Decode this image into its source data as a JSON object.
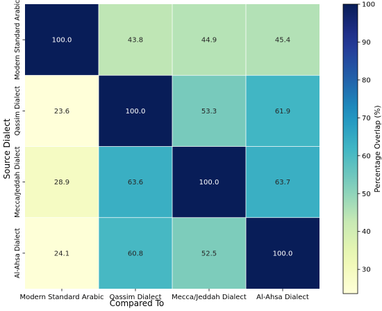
{
  "chart_data": {
    "type": "heatmap",
    "xlabel": "Compared To",
    "ylabel": "Source Dialect",
    "x_categories": [
      "Modern Standard Arabic",
      "Qassim Dialect",
      "Mecca/Jeddah Dialect",
      "Al-Ahsa Dialect"
    ],
    "y_categories": [
      "Modern Standard Arabic",
      "Qassim Dialect",
      "Mecca/Jeddah Dialect",
      "Al-Ahsa Dialect"
    ],
    "values": [
      [
        100.0,
        43.8,
        44.9,
        45.4
      ],
      [
        23.6,
        100.0,
        53.3,
        61.9
      ],
      [
        28.9,
        63.6,
        100.0,
        63.7
      ],
      [
        24.1,
        60.8,
        52.5,
        100.0
      ]
    ],
    "value_labels": [
      [
        "100.0",
        "43.8",
        "44.9",
        "45.4"
      ],
      [
        "23.6",
        "100.0",
        "53.3",
        "61.9"
      ],
      [
        "28.9",
        "63.6",
        "100.0",
        "63.7"
      ],
      [
        "24.1",
        "60.8",
        "52.5",
        "100.0"
      ]
    ],
    "colorbar": {
      "label": "Percentage Overlap (%)",
      "range": [
        23.6,
        100.0
      ],
      "ticks": [
        30,
        40,
        50,
        60,
        70,
        80,
        90,
        100
      ],
      "colormap": "YlGnBu"
    }
  }
}
